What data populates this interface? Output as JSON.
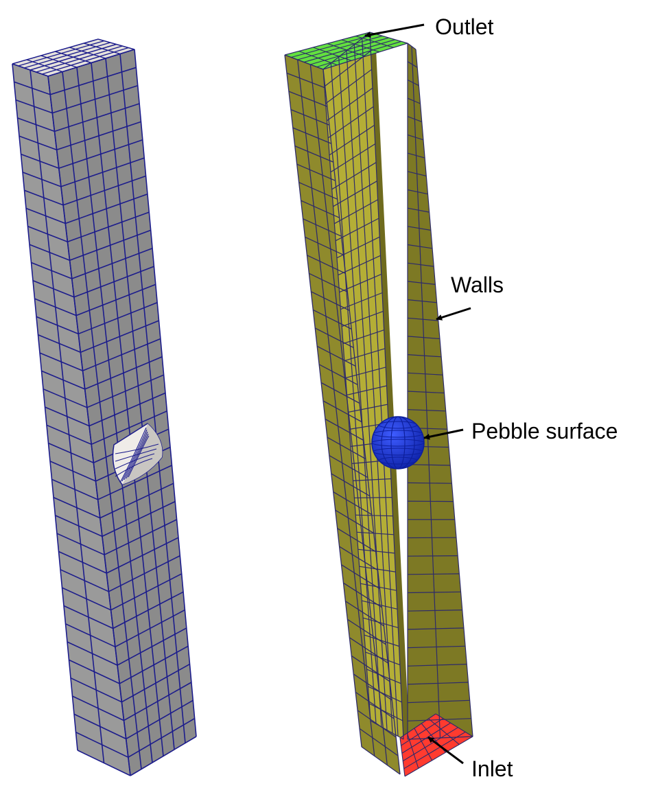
{
  "labels": {
    "outlet": "Outlet",
    "walls": "Walls",
    "pebble": "Pebble surface",
    "inlet": "Inlet"
  },
  "colors": {
    "background": "#ffffff",
    "mesh_line": "#1c1c8c",
    "grey_front": "#9a9a9a",
    "grey_side": "#8b8b8b",
    "grey_top": "#e4e1dc",
    "hole_light": "#efece8",
    "hole_shade": "#c9c6c2",
    "wall_outer_left": "#8f8a2c",
    "wall_inner_back": "#b4ae36",
    "wall_inner_side": "#6f6b1e",
    "wall_outer_right": "#7d7924",
    "wall_top_rim": "#6b6720",
    "outlet_color": "#63e03f",
    "inlet_color": "#ff3b2f",
    "pebble_color": "#1a35e6",
    "pebble_dark": "#0d1f9c",
    "arrow": "#000000"
  },
  "mesh": {
    "cells_across": 6,
    "cells_along": 38
  }
}
